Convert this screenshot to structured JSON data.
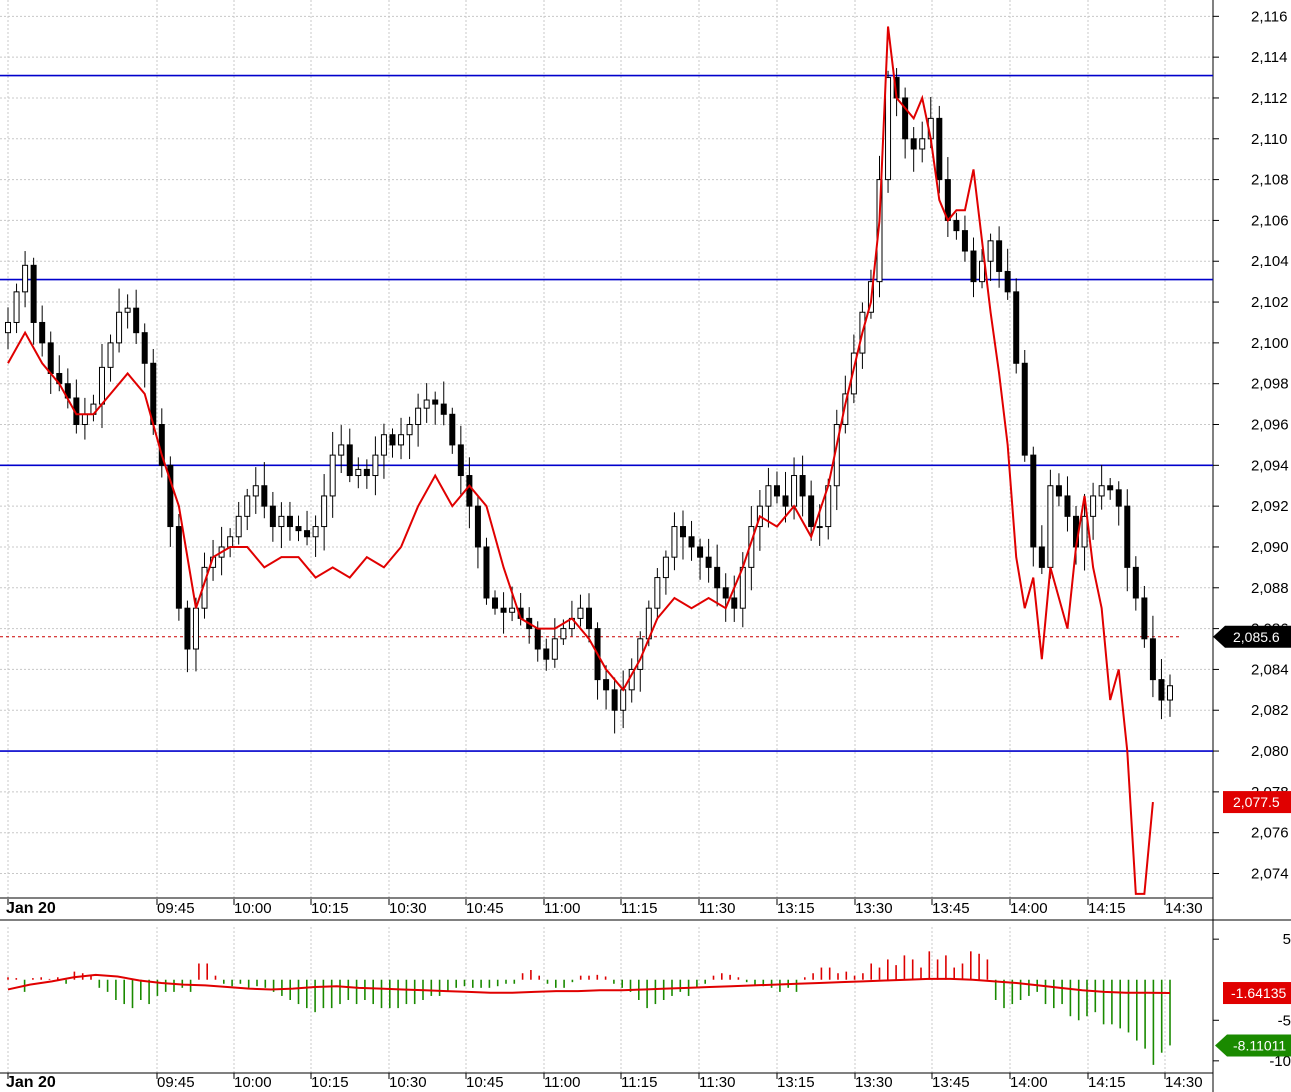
{
  "chart_data": [
    {
      "type": "candlestick",
      "title": "",
      "x_ticks": [
        "Jan 20",
        "09:45",
        "10:00",
        "10:15",
        "10:30",
        "10:45",
        "11:00",
        "11:15",
        "11:30",
        "13:15",
        "13:30",
        "13:45",
        "14:00",
        "14:15",
        "14:30"
      ],
      "y_ticks": [
        "2,116",
        "2,114",
        "2,112",
        "2,110",
        "2,108",
        "2,106",
        "2,104",
        "2,102",
        "2,100",
        "2,098",
        "2,096",
        "2,094",
        "2,092",
        "2,090",
        "2,088",
        "2,086",
        "2,084",
        "2,082",
        "2,080",
        "2,078",
        "2,076",
        "2,074"
      ],
      "ylim": [
        2072.8,
        2116.8
      ],
      "grid": true,
      "horizontal_lines": [
        2113.1,
        2103.1,
        2094.0,
        2080.0
      ],
      "last_price_line": 2085.6,
      "price_tag": "2,085.6",
      "ma_tag": "2,077.5",
      "colors": {
        "candle_up": "#ffffff",
        "candle_down": "#000000",
        "ma_line": "#e00000",
        "level_line": "#0000cc",
        "price_line": "#cc0000"
      },
      "price_series": [
        [
          0,
          2101.0
        ],
        [
          1,
          2102.5
        ],
        [
          2,
          2103.8
        ],
        [
          3,
          2101.0
        ],
        [
          4,
          2100.0
        ],
        [
          5,
          2098.5
        ],
        [
          6,
          2098.0
        ],
        [
          7,
          2097.3
        ],
        [
          8,
          2096.0
        ],
        [
          9,
          2096.5
        ],
        [
          10,
          2097.0
        ],
        [
          11,
          2098.8
        ],
        [
          12,
          2100.0
        ],
        [
          13,
          2101.5
        ],
        [
          14,
          2101.7
        ],
        [
          15,
          2100.5
        ],
        [
          16,
          2099.0
        ],
        [
          17,
          2096.0
        ],
        [
          18,
          2094.0
        ],
        [
          19,
          2091.0
        ],
        [
          20,
          2087.0
        ],
        [
          21,
          2085.0
        ],
        [
          22,
          2087.0
        ],
        [
          23,
          2089.0
        ],
        [
          24,
          2089.5
        ],
        [
          25,
          2090.0
        ],
        [
          26,
          2090.5
        ],
        [
          27,
          2091.5
        ],
        [
          28,
          2092.5
        ],
        [
          29,
          2093.0
        ],
        [
          30,
          2092.0
        ],
        [
          31,
          2091.0
        ],
        [
          32,
          2091.5
        ],
        [
          33,
          2091.0
        ],
        [
          34,
          2090.8
        ],
        [
          35,
          2090.5
        ],
        [
          36,
          2091.0
        ],
        [
          37,
          2092.5
        ],
        [
          38,
          2094.5
        ],
        [
          39,
          2095.0
        ],
        [
          40,
          2093.5
        ],
        [
          41,
          2093.8
        ],
        [
          42,
          2093.5
        ],
        [
          43,
          2094.5
        ],
        [
          44,
          2095.5
        ],
        [
          45,
          2095.0
        ],
        [
          46,
          2095.5
        ],
        [
          47,
          2096.0
        ],
        [
          48,
          2096.8
        ],
        [
          49,
          2097.2
        ],
        [
          50,
          2097.0
        ],
        [
          51,
          2096.5
        ],
        [
          52,
          2095.0
        ],
        [
          53,
          2093.5
        ],
        [
          54,
          2092.0
        ],
        [
          55,
          2090.0
        ],
        [
          56,
          2087.5
        ],
        [
          57,
          2087.0
        ],
        [
          58,
          2086.8
        ],
        [
          59,
          2087.0
        ],
        [
          60,
          2086.5
        ],
        [
          61,
          2086.0
        ],
        [
          62,
          2085.0
        ],
        [
          63,
          2084.5
        ],
        [
          64,
          2085.5
        ],
        [
          65,
          2086.0
        ],
        [
          66,
          2086.5
        ],
        [
          67,
          2087.0
        ],
        [
          68,
          2086.0
        ],
        [
          69,
          2083.5
        ],
        [
          70,
          2083.0
        ],
        [
          71,
          2082.0
        ],
        [
          72,
          2083.0
        ],
        [
          73,
          2084.0
        ],
        [
          74,
          2085.5
        ],
        [
          75,
          2087.0
        ],
        [
          76,
          2088.5
        ],
        [
          77,
          2089.5
        ],
        [
          78,
          2091.0
        ],
        [
          79,
          2090.5
        ],
        [
          80,
          2090.0
        ],
        [
          81,
          2089.5
        ],
        [
          82,
          2089.0
        ],
        [
          83,
          2088.0
        ],
        [
          84,
          2087.5
        ],
        [
          85,
          2087.0
        ],
        [
          86,
          2089.0
        ],
        [
          87,
          2091.0
        ],
        [
          88,
          2092.0
        ],
        [
          89,
          2093.0
        ],
        [
          90,
          2092.5
        ],
        [
          91,
          2092.0
        ],
        [
          92,
          2093.5
        ],
        [
          93,
          2092.5
        ],
        [
          94,
          2091.0
        ],
        [
          95,
          2091.0
        ],
        [
          96,
          2093.0
        ],
        [
          97,
          2096.0
        ],
        [
          98,
          2097.5
        ],
        [
          99,
          2099.5
        ],
        [
          100,
          2101.5
        ],
        [
          101,
          2103.0
        ],
        [
          102,
          2108.0
        ],
        [
          103,
          2113.0
        ],
        [
          104,
          2112.0
        ],
        [
          105,
          2110.0
        ],
        [
          106,
          2109.5
        ],
        [
          107,
          2110.0
        ],
        [
          108,
          2111.0
        ],
        [
          109,
          2108.0
        ],
        [
          110,
          2106.0
        ],
        [
          111,
          2105.5
        ],
        [
          112,
          2104.5
        ],
        [
          113,
          2103.0
        ],
        [
          114,
          2104.0
        ],
        [
          115,
          2105.0
        ],
        [
          116,
          2103.5
        ],
        [
          117,
          2102.5
        ],
        [
          118,
          2099.0
        ],
        [
          119,
          2094.5
        ],
        [
          120,
          2090.0
        ],
        [
          121,
          2089.0
        ],
        [
          122,
          2093.0
        ],
        [
          123,
          2092.5
        ],
        [
          124,
          2091.5
        ],
        [
          125,
          2090.0
        ],
        [
          126,
          2091.5
        ],
        [
          127,
          2092.5
        ],
        [
          128,
          2093.0
        ],
        [
          129,
          2092.8
        ],
        [
          130,
          2092.0
        ],
        [
          131,
          2089.0
        ],
        [
          132,
          2087.5
        ],
        [
          133,
          2085.5
        ],
        [
          134,
          2083.5
        ],
        [
          135,
          2082.5
        ],
        [
          136,
          2083.2
        ]
      ],
      "ma_series": [
        [
          0,
          2099.0
        ],
        [
          2,
          2100.5
        ],
        [
          4,
          2099.0
        ],
        [
          6,
          2098.0
        ],
        [
          8,
          2096.5
        ],
        [
          10,
          2096.5
        ],
        [
          12,
          2097.5
        ],
        [
          14,
          2098.5
        ],
        [
          16,
          2097.5
        ],
        [
          18,
          2094.5
        ],
        [
          20,
          2092.0
        ],
        [
          22,
          2087.0
        ],
        [
          24,
          2089.5
        ],
        [
          26,
          2090.0
        ],
        [
          28,
          2090.0
        ],
        [
          30,
          2089.0
        ],
        [
          32,
          2089.5
        ],
        [
          34,
          2089.5
        ],
        [
          36,
          2088.5
        ],
        [
          38,
          2089.0
        ],
        [
          40,
          2088.5
        ],
        [
          42,
          2089.5
        ],
        [
          44,
          2089.0
        ],
        [
          46,
          2090.0
        ],
        [
          48,
          2092.0
        ],
        [
          50,
          2093.5
        ],
        [
          52,
          2092.0
        ],
        [
          54,
          2093.0
        ],
        [
          56,
          2092.0
        ],
        [
          58,
          2089.0
        ],
        [
          60,
          2086.5
        ],
        [
          62,
          2086.0
        ],
        [
          64,
          2086.0
        ],
        [
          66,
          2086.5
        ],
        [
          68,
          2085.5
        ],
        [
          70,
          2084.0
        ],
        [
          72,
          2083.0
        ],
        [
          74,
          2084.5
        ],
        [
          76,
          2086.5
        ],
        [
          78,
          2087.5
        ],
        [
          80,
          2087.0
        ],
        [
          82,
          2087.5
        ],
        [
          84,
          2087.0
        ],
        [
          86,
          2089.0
        ],
        [
          88,
          2091.5
        ],
        [
          90,
          2091.0
        ],
        [
          92,
          2092.0
        ],
        [
          94,
          2090.5
        ],
        [
          96,
          2093.0
        ],
        [
          98,
          2097.0
        ],
        [
          100,
          2100.5
        ],
        [
          101,
          2102.0
        ],
        [
          102,
          2106.0
        ],
        [
          103,
          2115.5
        ],
        [
          104,
          2112.0
        ],
        [
          105,
          2111.5
        ],
        [
          106,
          2111.0
        ],
        [
          107,
          2112.0
        ],
        [
          108,
          2110.0
        ],
        [
          109,
          2107.0
        ],
        [
          110,
          2106.0
        ],
        [
          111,
          2106.5
        ],
        [
          112,
          2106.5
        ],
        [
          113,
          2108.5
        ],
        [
          114,
          2105.0
        ],
        [
          115,
          2101.5
        ],
        [
          116,
          2098.5
        ],
        [
          117,
          2095.0
        ],
        [
          118,
          2089.5
        ],
        [
          119,
          2087.0
        ],
        [
          120,
          2088.5
        ],
        [
          121,
          2084.5
        ],
        [
          122,
          2089.0
        ],
        [
          123,
          2087.5
        ],
        [
          124,
          2086.0
        ],
        [
          125,
          2090.0
        ],
        [
          126,
          2092.5
        ],
        [
          127,
          2089.0
        ],
        [
          128,
          2087.0
        ],
        [
          129,
          2082.5
        ],
        [
          130,
          2084.0
        ],
        [
          131,
          2080.0
        ],
        [
          132,
          2073.0
        ],
        [
          133,
          2073.0
        ],
        [
          134,
          2077.5
        ]
      ]
    },
    {
      "type": "histogram",
      "title": "",
      "y_ticks": [
        "5",
        "-5",
        "-10"
      ],
      "ylim": [
        -11.5,
        6.5
      ],
      "tags": {
        "signal": "-1.64135",
        "histogram": "-8.11011"
      },
      "colors": {
        "positive": "#dd0000",
        "negative": "#1a8a00",
        "signal": "#e00000"
      },
      "values": [
        0.3,
        0.2,
        -1.5,
        0.2,
        0.3,
        0.1,
        0.3,
        -0.5,
        1.0,
        0.8,
        0.6,
        -1.0,
        -1.5,
        -2.5,
        -3.0,
        -3.5,
        -2.5,
        -3.0,
        -2.0,
        -1.5,
        -1.5,
        -1.0,
        -1.5,
        2.0,
        2.0,
        0.5,
        -0.5,
        -0.8,
        -0.5,
        -1.0,
        -0.8,
        -1.0,
        -1.5,
        -2.0,
        -2.5,
        -3.0,
        -3.5,
        -4.0,
        -3.5,
        -3.5,
        -3.0,
        -2.5,
        -3.0,
        -2.5,
        -3.0,
        -3.5,
        -3.5,
        -3.5,
        -3.0,
        -3.0,
        -2.5,
        -2.0,
        -2.0,
        -1.5,
        -1.0,
        -0.8,
        -1.0,
        -1.0,
        -1.0,
        -0.8,
        -0.5,
        -0.5,
        0.8,
        1.2,
        0.5,
        -0.5,
        -1.0,
        -1.0,
        -0.3,
        0.5,
        0.5,
        0.6,
        0.4,
        -0.5,
        -1.0,
        -1.5,
        -2.5,
        -3.5,
        -3.0,
        -2.5,
        -2.0,
        -1.5,
        -2.0,
        -1.0,
        -0.5,
        0.5,
        0.8,
        0.6,
        0.3,
        -0.3,
        -0.6,
        -0.8,
        -1.0,
        -1.5,
        -1.0,
        -1.5,
        0.3,
        0.8,
        1.5,
        1.5,
        0.8,
        1.0,
        0.5,
        0.8,
        2.0,
        1.5,
        2.5,
        1.8,
        3.0,
        2.5,
        1.5,
        3.5,
        2.5,
        3.0,
        1.5,
        2.0,
        3.5,
        3.2,
        2.5,
        -2.5,
        -3.5,
        -3.0,
        -2.5,
        -2.0,
        -1.5,
        -3.0,
        -3.5,
        -3.0,
        -4.5,
        -5.0,
        -4.5,
        -4.0,
        -5.5,
        -5.5,
        -6.0,
        -6.5,
        -7.5,
        -8.5,
        -10.5,
        -9.0,
        -8.1
      ],
      "signal": [
        -1.2,
        -0.6,
        -0.2,
        0.3,
        0.6,
        0.4,
        -0.1,
        -0.4,
        -0.6,
        -0.7,
        -0.9,
        -1.1,
        -1.2,
        -1.1,
        -0.9,
        -0.8,
        -1.0,
        -1.1,
        -1.2,
        -1.3,
        -1.4,
        -1.5,
        -1.6,
        -1.6,
        -1.5,
        -1.4,
        -1.4,
        -1.3,
        -1.3,
        -1.2,
        -1.1,
        -1.0,
        -0.9,
        -0.8,
        -0.7,
        -0.6,
        -0.5,
        -0.4,
        -0.3,
        -0.2,
        -0.1,
        0.0,
        0.1,
        0.1,
        0.0,
        -0.2,
        -0.4,
        -0.7,
        -1.0,
        -1.3,
        -1.5,
        -1.6,
        -1.6,
        -1.64
      ]
    }
  ]
}
